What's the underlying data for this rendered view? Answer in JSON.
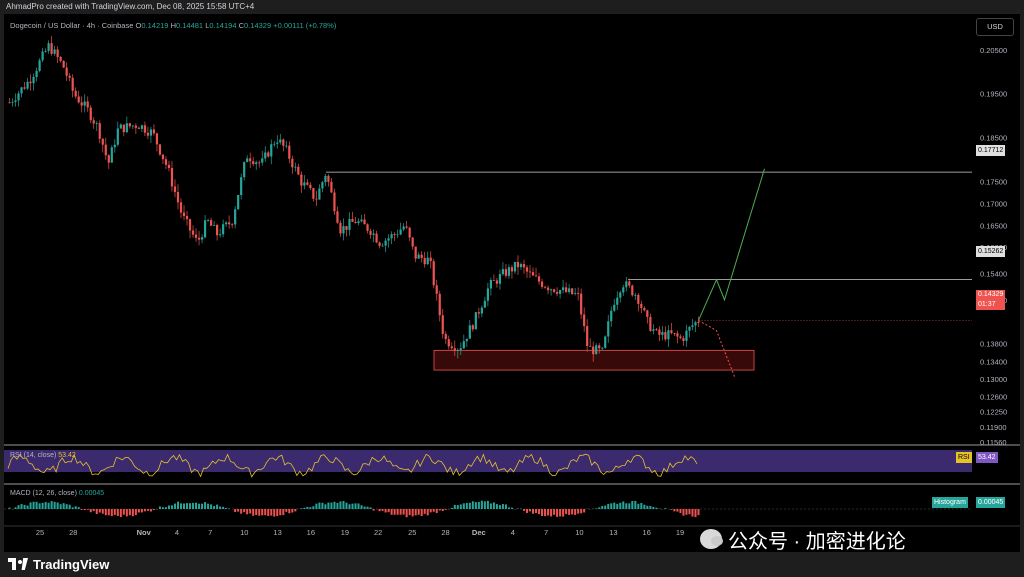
{
  "header": {
    "attribution": "AhmadPro created with TradingView.com, Dec 08, 2025 15:58 UTC+4"
  },
  "legend": {
    "symbol": "Dogecoin / US Dollar · 4h · Coinbase",
    "o": "O",
    "o_val": "0.14219",
    "h": "H",
    "h_val": "0.14481",
    "l": "L",
    "l_val": "0.14194",
    "c": "C",
    "c_val": "0.14329",
    "change": "+0.00111 (+0.78%)"
  },
  "currency": "USD",
  "price_levels": {
    "resistance_top": "0.17712",
    "resistance_mid": "0.15262",
    "current": "0.14329",
    "countdown": "01:37"
  },
  "rsi": {
    "legend": "RSI (14, close)",
    "value": "53.42",
    "tag": "RSI"
  },
  "macd": {
    "legend": "MACD (12, 26, close)",
    "value": "0.00045",
    "tag": "Histogram"
  },
  "footer": {
    "brand": "TradingView"
  },
  "watermark": {
    "text": "公众号 · 加密进化论"
  },
  "colors": {
    "up": "#26a69a",
    "down": "#ef5350",
    "rsi_line": "#e6c229",
    "rsi_band": "#3b2a6e",
    "projection_up": "#4caf50",
    "zone": "#a01a1a"
  },
  "chart_data": {
    "type": "candlestick",
    "title": "Dogecoin / US Dollar · 4h · Coinbase",
    "ylim": [
      0.1156,
      0.2086
    ],
    "price_ticks": [
      "0.20500",
      "0.19500",
      "0.18500",
      "0.17500",
      "0.17000",
      "0.16500",
      "0.16000",
      "0.15400",
      "0.14800",
      "0.13800",
      "0.13400",
      "0.13000",
      "0.12600",
      "0.12250",
      "0.11900",
      "0.11560"
    ],
    "price_tick_values": [
      0.205,
      0.195,
      0.185,
      0.175,
      0.17,
      0.165,
      0.16,
      0.154,
      0.148,
      0.138,
      0.134,
      0.13,
      0.126,
      0.1225,
      0.119,
      0.1156
    ],
    "x_ticks": [
      "25",
      "28",
      "Nov",
      "4",
      "7",
      "10",
      "13",
      "16",
      "19",
      "22",
      "25",
      "28",
      "Dec",
      "4",
      "7",
      "10",
      "13",
      "16",
      "19"
    ],
    "x_tick_positions": [
      0.0,
      0.043,
      0.134,
      0.177,
      0.22,
      0.264,
      0.307,
      0.35,
      0.394,
      0.437,
      0.481,
      0.524,
      0.567,
      0.611,
      0.654,
      0.697,
      0.741,
      0.784,
      0.827
    ],
    "price_anchors": [
      [
        0,
        0.193
      ],
      [
        20,
        0.198
      ],
      [
        40,
        0.206
      ],
      [
        55,
        0.201
      ],
      [
        65,
        0.195
      ],
      [
        80,
        0.191
      ],
      [
        90,
        0.187
      ],
      [
        100,
        0.179
      ],
      [
        110,
        0.187
      ],
      [
        130,
        0.188
      ],
      [
        145,
        0.186
      ],
      [
        160,
        0.178
      ],
      [
        175,
        0.167
      ],
      [
        190,
        0.161
      ],
      [
        200,
        0.166
      ],
      [
        210,
        0.163
      ],
      [
        225,
        0.166
      ],
      [
        240,
        0.181
      ],
      [
        255,
        0.179
      ],
      [
        270,
        0.185
      ],
      [
        280,
        0.182
      ],
      [
        295,
        0.175
      ],
      [
        310,
        0.171
      ],
      [
        320,
        0.177
      ],
      [
        335,
        0.164
      ],
      [
        350,
        0.166
      ],
      [
        365,
        0.164
      ],
      [
        375,
        0.161
      ],
      [
        390,
        0.163
      ],
      [
        400,
        0.165
      ],
      [
        410,
        0.158
      ],
      [
        425,
        0.157
      ],
      [
        435,
        0.145
      ],
      [
        440,
        0.139
      ],
      [
        455,
        0.137
      ],
      [
        470,
        0.143
      ],
      [
        485,
        0.151
      ],
      [
        500,
        0.154
      ],
      [
        515,
        0.156
      ],
      [
        530,
        0.153
      ],
      [
        545,
        0.151
      ],
      [
        560,
        0.15
      ],
      [
        575,
        0.149
      ],
      [
        585,
        0.137
      ],
      [
        600,
        0.136
      ],
      [
        610,
        0.147
      ],
      [
        620,
        0.152
      ],
      [
        635,
        0.149
      ],
      [
        645,
        0.143
      ],
      [
        655,
        0.14
      ],
      [
        670,
        0.14
      ],
      [
        680,
        0.139
      ],
      [
        690,
        0.142
      ],
      [
        697,
        0.1433
      ]
    ],
    "annotations": {
      "demand_zone": [
        0.132,
        0.1365
      ],
      "resistance_levels": [
        0.17712,
        0.15262
      ],
      "projection_up": [
        [
          0.1433,
          0.1455
        ],
        [
          0.1526,
          0.1575
        ],
        [
          0.1495,
          0.148
        ],
        [
          0.1772,
          0.178
        ]
      ],
      "projection_down": [
        [
          0.1433,
          0.141
        ],
        [
          0.1335,
          0.1305
        ]
      ]
    },
    "rsi_values_hint": "oscillates 35-65, last 53.42",
    "macd_hist_last": 0.00045
  }
}
